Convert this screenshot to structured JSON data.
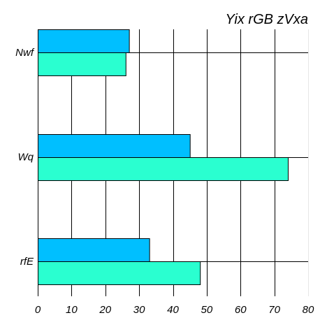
{
  "chart_data": {
    "type": "bar",
    "orientation": "horizontal",
    "title": "Yix rGB zVxa",
    "xlabel": "",
    "ylabel": "",
    "categories": [
      "Nwf",
      "Wq",
      "rfE"
    ],
    "series": [
      {
        "color": "#00bfff",
        "values": [
          27,
          45,
          33
        ]
      },
      {
        "color": "#2affd0",
        "values": [
          26,
          74,
          48
        ]
      }
    ],
    "xlim": [
      0,
      80
    ],
    "xticks": [
      0,
      10,
      20,
      30,
      40,
      50,
      60,
      70,
      80
    ],
    "grid": true,
    "legend": "none"
  }
}
